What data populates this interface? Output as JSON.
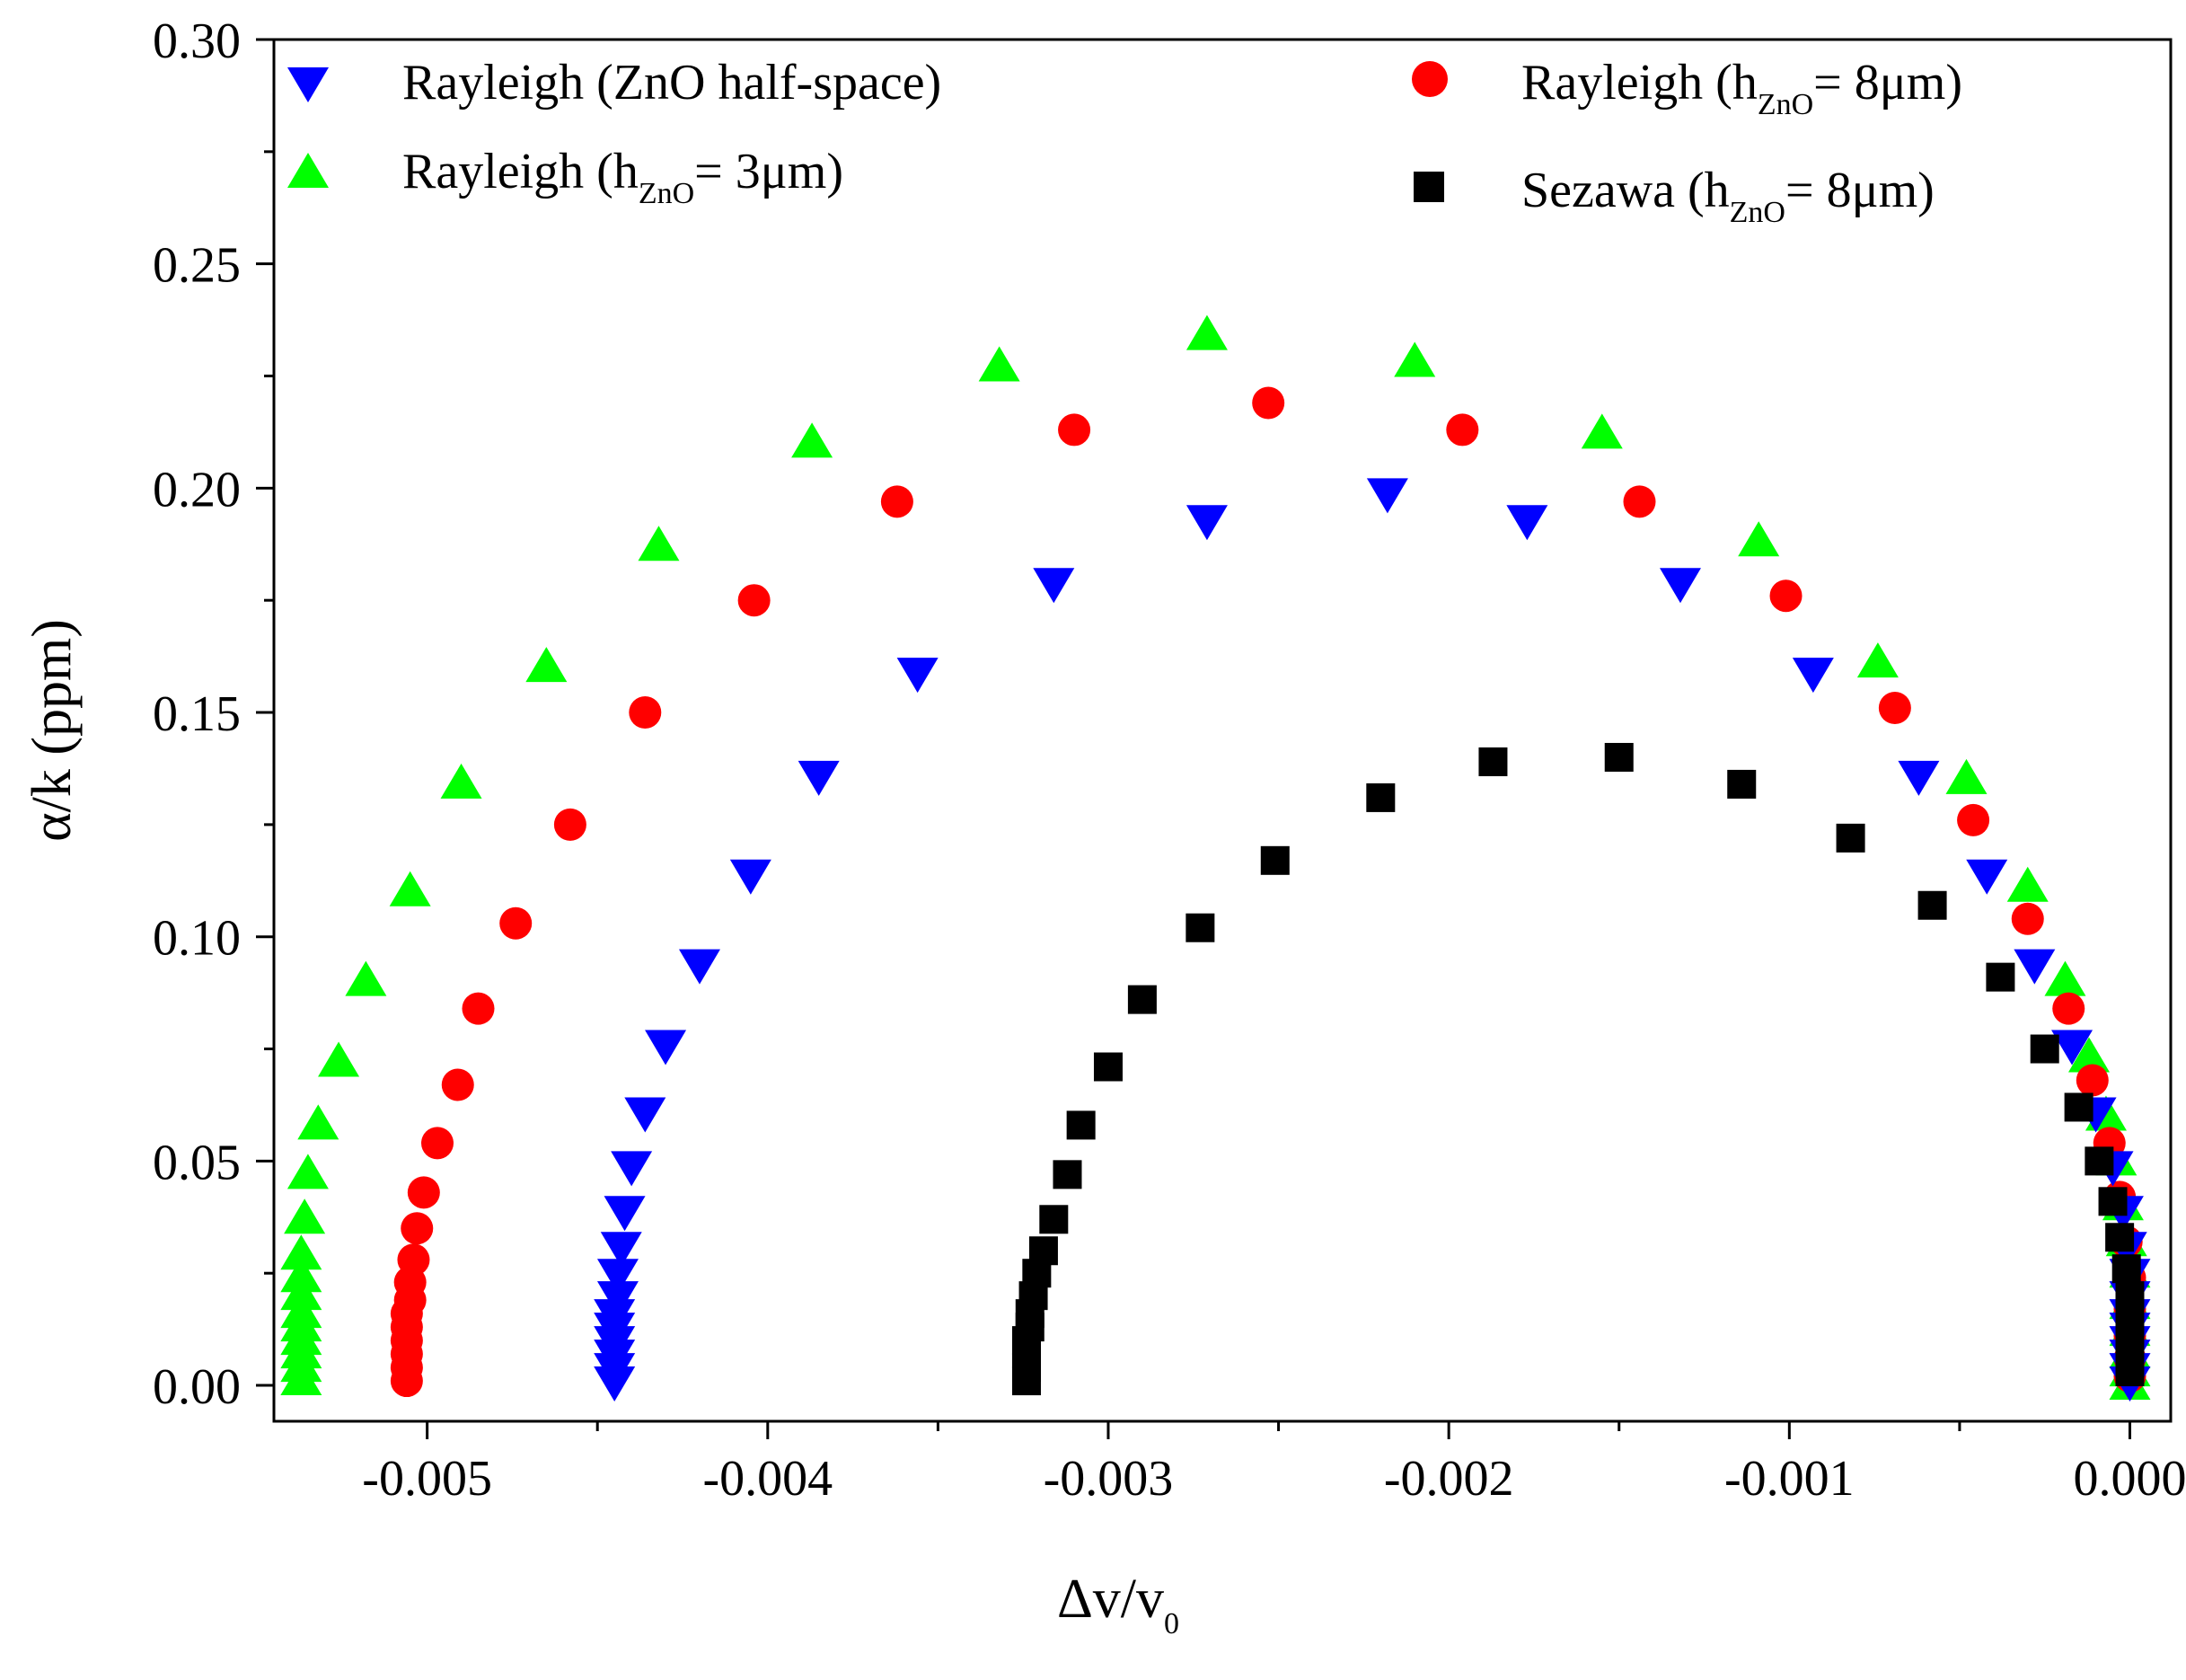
{
  "chart_data": {
    "type": "scatter",
    "xlabel": "Δv/v",
    "xlabel_sub": "0",
    "ylabel": "α/k (ppm)",
    "xlim": [
      -0.00545,
      0.00012
    ],
    "ylim": [
      -0.008,
      0.3
    ],
    "x_ticks": [
      -0.005,
      -0.004,
      -0.003,
      -0.002,
      -0.001,
      0.0
    ],
    "x_tick_labels": [
      "-0.005",
      "-0.004",
      "-0.003",
      "-0.002",
      "-0.001",
      "0.000"
    ],
    "y_ticks": [
      0.0,
      0.05,
      0.1,
      0.15,
      0.2,
      0.25,
      0.3
    ],
    "y_tick_labels": [
      "0.00",
      "0.05",
      "0.10",
      "0.15",
      "0.20",
      "0.25",
      "0.30"
    ],
    "legend": [
      {
        "series": "rayleigh_half_space",
        "label_main": "Rayleigh (ZnO half-space)",
        "label_sub": "",
        "label_tail": ""
      },
      {
        "series": "rayleigh_3um",
        "label_main": "Rayleigh  (h",
        "label_sub": "ZnO",
        "label_tail": "= 3μm)"
      },
      {
        "series": "rayleigh_8um",
        "label_main": "Rayleigh  (h",
        "label_sub": "ZnO",
        "label_tail": "= 8μm)"
      },
      {
        "series": "sezawa_8um",
        "label_main": "Sezawa (h",
        "label_sub": "ZnO",
        "label_tail": "= 8μm)"
      }
    ],
    "series": [
      {
        "id": "rayleigh_3um",
        "name": "Rayleigh (hZnO= 3μm)",
        "marker": "triangle-up",
        "color": "#00ff00",
        "points": [
          [
            -0.00537,
            0.001
          ],
          [
            -0.00537,
            0.004
          ],
          [
            -0.00537,
            0.007
          ],
          [
            -0.00537,
            0.01
          ],
          [
            -0.00537,
            0.013
          ],
          [
            -0.00537,
            0.016
          ],
          [
            -0.00537,
            0.02
          ],
          [
            -0.00537,
            0.024
          ],
          [
            -0.00537,
            0.029
          ],
          [
            -0.00536,
            0.037
          ],
          [
            -0.00535,
            0.047
          ],
          [
            -0.00532,
            0.058
          ],
          [
            -0.00526,
            0.072
          ],
          [
            -0.00518,
            0.09
          ],
          [
            -0.00505,
            0.11
          ],
          [
            -0.0049,
            0.134
          ],
          [
            -0.00465,
            0.16
          ],
          [
            -0.00432,
            0.187
          ],
          [
            -0.00387,
            0.21
          ],
          [
            -0.00332,
            0.227
          ],
          [
            -0.00271,
            0.234
          ],
          [
            -0.0021,
            0.228
          ],
          [
            -0.00155,
            0.212
          ],
          [
            -0.00109,
            0.188
          ],
          [
            -0.00074,
            0.161
          ],
          [
            -0.00048,
            0.135
          ],
          [
            -0.0003,
            0.111
          ],
          [
            -0.00019,
            0.09
          ],
          [
            -0.00012,
            0.073
          ],
          [
            -7e-05,
            0.06
          ],
          [
            -4e-05,
            0.05
          ],
          [
            -2e-05,
            0.04
          ],
          [
            -1e-05,
            0.032
          ],
          [
            0.0,
            0.025
          ],
          [
            0.0,
            0.018
          ],
          [
            0.0,
            0.012
          ],
          [
            0.0,
            0.007
          ],
          [
            0.0,
            0.003
          ],
          [
            0.0,
            0.0
          ]
        ]
      },
      {
        "id": "rayleigh_8um",
        "name": "Rayleigh (hZnO= 8μm)",
        "marker": "circle",
        "color": "#ff0000",
        "points": [
          [
            -0.00506,
            0.001
          ],
          [
            -0.00506,
            0.004
          ],
          [
            -0.00506,
            0.007
          ],
          [
            -0.00506,
            0.01
          ],
          [
            -0.00506,
            0.013
          ],
          [
            -0.00506,
            0.016
          ],
          [
            -0.00505,
            0.019
          ],
          [
            -0.00505,
            0.023
          ],
          [
            -0.00504,
            0.028
          ],
          [
            -0.00503,
            0.035
          ],
          [
            -0.00501,
            0.043
          ],
          [
            -0.00497,
            0.054
          ],
          [
            -0.00491,
            0.067
          ],
          [
            -0.00485,
            0.084
          ],
          [
            -0.00474,
            0.103
          ],
          [
            -0.00458,
            0.125
          ],
          [
            -0.00436,
            0.15
          ],
          [
            -0.00404,
            0.175
          ],
          [
            -0.00362,
            0.197
          ],
          [
            -0.0031,
            0.213
          ],
          [
            -0.00253,
            0.219
          ],
          [
            -0.00196,
            0.213
          ],
          [
            -0.00144,
            0.197
          ],
          [
            -0.00101,
            0.176
          ],
          [
            -0.00069,
            0.151
          ],
          [
            -0.00046,
            0.126
          ],
          [
            -0.0003,
            0.104
          ],
          [
            -0.00018,
            0.084
          ],
          [
            -0.00011,
            0.068
          ],
          [
            -6e-05,
            0.054
          ],
          [
            -3e-05,
            0.042
          ],
          [
            -1e-05,
            0.032
          ],
          [
            0.0,
            0.024
          ],
          [
            0.0,
            0.017
          ],
          [
            0.0,
            0.011
          ],
          [
            0.0,
            0.006
          ],
          [
            0.0,
            0.002
          ]
        ]
      },
      {
        "id": "rayleigh_half_space",
        "name": "Rayleigh (ZnO half-space)",
        "marker": "triangle-down",
        "color": "#0000ff",
        "points": [
          [
            -0.00445,
            0.001
          ],
          [
            -0.00445,
            0.004
          ],
          [
            -0.00445,
            0.007
          ],
          [
            -0.00445,
            0.01
          ],
          [
            -0.00445,
            0.013
          ],
          [
            -0.00445,
            0.016
          ],
          [
            -0.00444,
            0.02
          ],
          [
            -0.00444,
            0.025
          ],
          [
            -0.00443,
            0.031
          ],
          [
            -0.00442,
            0.039
          ],
          [
            -0.0044,
            0.049
          ],
          [
            -0.00436,
            0.061
          ],
          [
            -0.0043,
            0.076
          ],
          [
            -0.0042,
            0.094
          ],
          [
            -0.00405,
            0.114
          ],
          [
            -0.00385,
            0.136
          ],
          [
            -0.00356,
            0.159
          ],
          [
            -0.00316,
            0.179
          ],
          [
            -0.00271,
            0.193
          ],
          [
            -0.00218,
            0.199
          ],
          [
            -0.00177,
            0.193
          ],
          [
            -0.00132,
            0.179
          ],
          [
            -0.00093,
            0.159
          ],
          [
            -0.00062,
            0.136
          ],
          [
            -0.00042,
            0.114
          ],
          [
            -0.00028,
            0.094
          ],
          [
            -0.00017,
            0.076
          ],
          [
            -0.0001,
            0.061
          ],
          [
            -5e-05,
            0.049
          ],
          [
            -2e-05,
            0.039
          ],
          [
            -1e-05,
            0.031
          ],
          [
            0.0,
            0.025
          ],
          [
            0.0,
            0.02
          ],
          [
            0.0,
            0.016
          ],
          [
            0.0,
            0.013
          ],
          [
            0.0,
            0.01
          ],
          [
            0.0,
            0.007
          ],
          [
            0.0,
            0.004
          ],
          [
            0.0,
            0.001
          ]
        ]
      },
      {
        "id": "sezawa_8um",
        "name": "Sezawa (hZnO= 8μm)",
        "marker": "square",
        "color": "#000000",
        "points": [
          [
            -0.00324,
            0.001
          ],
          [
            -0.00324,
            0.004
          ],
          [
            -0.00324,
            0.007
          ],
          [
            -0.00324,
            0.01
          ],
          [
            -0.00323,
            0.013
          ],
          [
            -0.00323,
            0.016
          ],
          [
            -0.00322,
            0.02
          ],
          [
            -0.00321,
            0.025
          ],
          [
            -0.00319,
            0.03
          ],
          [
            -0.00316,
            0.037
          ],
          [
            -0.00312,
            0.047
          ],
          [
            -0.00308,
            0.058
          ],
          [
            -0.003,
            0.071
          ],
          [
            -0.0029,
            0.086
          ],
          [
            -0.00273,
            0.102
          ],
          [
            -0.00251,
            0.117
          ],
          [
            -0.0022,
            0.131
          ],
          [
            -0.00187,
            0.139
          ],
          [
            -0.0015,
            0.14
          ],
          [
            -0.00114,
            0.134
          ],
          [
            -0.00082,
            0.122
          ],
          [
            -0.00058,
            0.107
          ],
          [
            -0.00038,
            0.091
          ],
          [
            -0.00025,
            0.075
          ],
          [
            -0.00015,
            0.062
          ],
          [
            -9e-05,
            0.05
          ],
          [
            -5e-05,
            0.041
          ],
          [
            -3e-05,
            0.033
          ],
          [
            -1e-05,
            0.026
          ],
          [
            0.0,
            0.02
          ],
          [
            0.0,
            0.015
          ],
          [
            0.0,
            0.01
          ],
          [
            0.0,
            0.006
          ],
          [
            0.0,
            0.003
          ]
        ]
      }
    ]
  }
}
